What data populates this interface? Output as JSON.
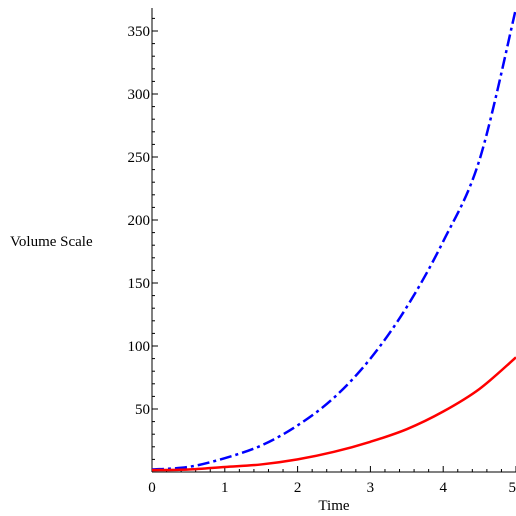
{
  "chart_data": {
    "type": "line",
    "xlabel": "Time",
    "ylabel": "Volume Scale",
    "xlim": [
      0,
      5
    ],
    "ylim": [
      0,
      368
    ],
    "x_ticks": [
      0,
      1,
      2,
      3,
      4,
      5
    ],
    "x_tick_labels": [
      "0",
      "1",
      "2",
      "3",
      "4",
      "5"
    ],
    "y_ticks": [
      50,
      100,
      150,
      200,
      250,
      300,
      350
    ],
    "y_tick_labels": [
      "50",
      "100",
      "150",
      "200",
      "250",
      "300",
      "350"
    ],
    "grid": false,
    "series": [
      {
        "style": "dash-dot",
        "color": "#0000ff",
        "x": [
          0,
          0.5,
          1,
          1.5,
          2,
          2.5,
          3,
          3.5,
          4,
          4.5,
          5
        ],
        "y": [
          2,
          4,
          11,
          21,
          37,
          59,
          90,
          131,
          183,
          248,
          368
        ]
      },
      {
        "style": "solid",
        "color": "#ff0000",
        "x": [
          0,
          0.5,
          1,
          1.5,
          2,
          2.5,
          3,
          3.5,
          4,
          4.5,
          5
        ],
        "y": [
          1.5,
          2,
          4,
          6,
          10,
          16,
          24,
          34,
          48,
          66,
          91
        ]
      }
    ]
  }
}
